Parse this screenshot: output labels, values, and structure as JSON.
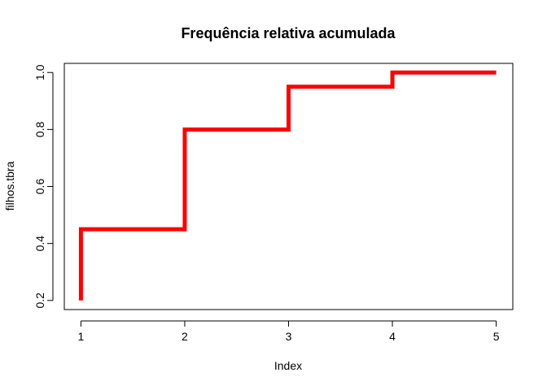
{
  "chart_data": {
    "type": "line",
    "title": "Frequência relativa acumulada",
    "xlabel": "Index",
    "ylabel": "filhos.tbra",
    "x": [
      1,
      2,
      3,
      4,
      5
    ],
    "values": [
      0.2,
      0.45,
      0.8,
      0.95,
      1.0
    ],
    "step": "post-start-vertical",
    "xlim": [
      0.84,
      5.16
    ],
    "ylim": [
      0.168,
      1.032
    ],
    "xticks": [
      1,
      2,
      3,
      4,
      5
    ],
    "yticks": [
      0.2,
      0.4,
      0.6,
      0.8,
      1.0
    ],
    "xtick_labels": [
      "1",
      "2",
      "3",
      "4",
      "5"
    ],
    "ytick_labels": [
      "0.2",
      "0.4",
      "0.6",
      "0.8",
      "1.0"
    ],
    "line_color": "#ff0000",
    "grid": false,
    "legend": "none"
  }
}
